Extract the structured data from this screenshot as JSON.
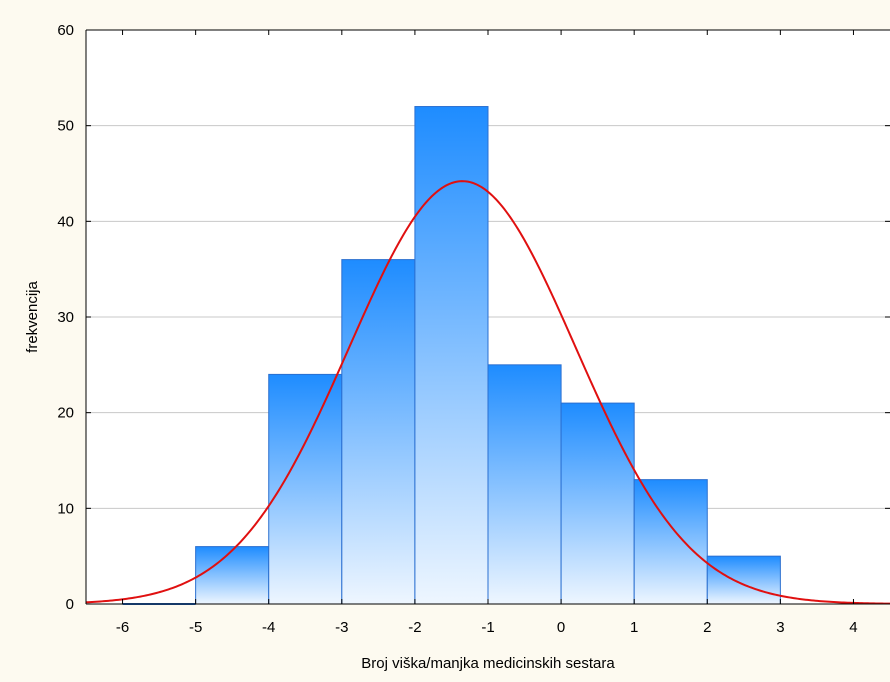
{
  "chart_data": {
    "type": "bar",
    "subtype": "histogram-with-normal-fit",
    "title": "",
    "xlabel": "Broj viška/manjka medicinskih sestara",
    "ylabel": "frekvencija",
    "xlim": [
      -6.5,
      4.5
    ],
    "ylim": [
      0,
      60
    ],
    "grid": true,
    "legend": "none",
    "xticks": [
      "-6",
      "-5",
      "-4",
      "-3",
      "-2",
      "-1",
      "0",
      "1",
      "2",
      "3",
      "4"
    ],
    "yticks": [
      "0",
      "10",
      "20",
      "30",
      "40",
      "50",
      "60"
    ],
    "bins": [
      {
        "from": -6,
        "to": -5,
        "value": 0
      },
      {
        "from": -5,
        "to": -4,
        "value": 6
      },
      {
        "from": -4,
        "to": -3,
        "value": 24
      },
      {
        "from": -3,
        "to": -2,
        "value": 36
      },
      {
        "from": -2,
        "to": -1,
        "value": 52
      },
      {
        "from": -1,
        "to": 0,
        "value": 25
      },
      {
        "from": 0,
        "to": 1,
        "value": 21
      },
      {
        "from": 1,
        "to": 2,
        "value": 13
      },
      {
        "from": 2,
        "to": 3,
        "value": 5
      }
    ],
    "normal_fit": {
      "mean": -1.35,
      "peak": 44.2,
      "sd": 1.55
    },
    "colors": {
      "bar_top": "#1e8cff",
      "bar_bottom": "#eef6ff",
      "bar_edge": "#2a6fd0",
      "fit_curve": "#e01010",
      "grid": "#c8c8c8",
      "background": "#fdfaf0",
      "plot_background": "#ffffff"
    }
  }
}
